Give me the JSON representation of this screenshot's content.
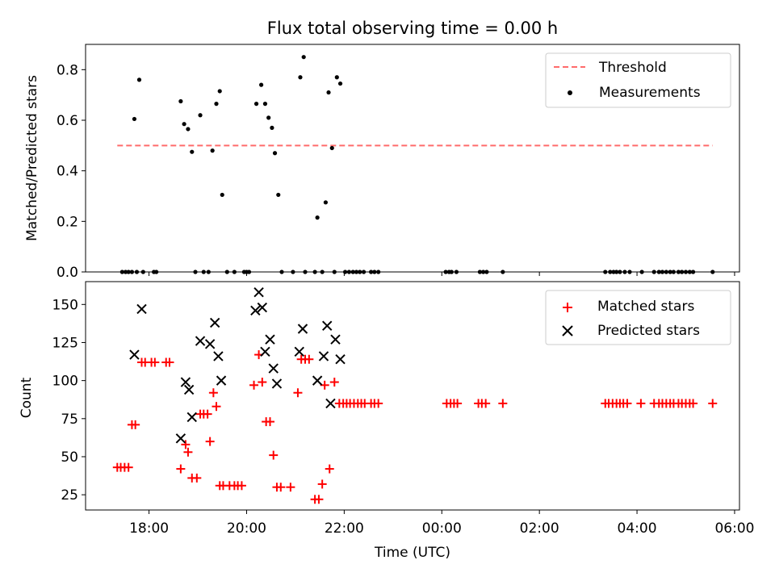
{
  "chart_data": [
    {
      "type": "scatter",
      "title": "Flux total observing time = 0.00 h",
      "xlabel": "",
      "ylabel": "Matched/Predicted stars",
      "x_unit": "hours since 00:00 UTC (day 2)",
      "xlim": [
        -7.3,
        6.1
      ],
      "ylim": [
        0,
        0.9
      ],
      "yticks": [
        0.0,
        0.2,
        0.4,
        0.6,
        0.8
      ],
      "ytick_labels": [
        "0.0",
        "0.2",
        "0.4",
        "0.6",
        "0.8"
      ],
      "legend_position": "top-right",
      "threshold": {
        "name": "Threshold",
        "value": 0.5,
        "x": [
          -6.65,
          5.55
        ],
        "color": "#ff6b6b",
        "style": "dashed"
      },
      "series": [
        {
          "name": "Measurements",
          "color": "#000000",
          "marker": "dot",
          "points": [
            [
              -6.55,
              0.0
            ],
            [
              -6.48,
              0.0
            ],
            [
              -6.42,
              0.0
            ],
            [
              -6.35,
              0.0
            ],
            [
              -6.3,
              0.605
            ],
            [
              -6.25,
              0.0
            ],
            [
              -6.2,
              0.76
            ],
            [
              -6.12,
              0.0
            ],
            [
              -5.9,
              0.0
            ],
            [
              -5.85,
              0.0
            ],
            [
              -5.35,
              0.675
            ],
            [
              -5.28,
              0.585
            ],
            [
              -5.2,
              0.565
            ],
            [
              -5.12,
              0.475
            ],
            [
              -5.05,
              0.0
            ],
            [
              -4.95,
              0.62
            ],
            [
              -4.88,
              0.0
            ],
            [
              -4.78,
              0.0
            ],
            [
              -4.7,
              0.48
            ],
            [
              -4.62,
              0.665
            ],
            [
              -4.55,
              0.715
            ],
            [
              -4.5,
              0.305
            ],
            [
              -4.4,
              0.0
            ],
            [
              -4.25,
              0.0
            ],
            [
              -4.05,
              0.0
            ],
            [
              -4.0,
              0.0
            ],
            [
              -3.95,
              0.0
            ],
            [
              -3.8,
              0.665
            ],
            [
              -3.7,
              0.74
            ],
            [
              -3.62,
              0.665
            ],
            [
              -3.55,
              0.61
            ],
            [
              -3.48,
              0.57
            ],
            [
              -3.42,
              0.47
            ],
            [
              -3.35,
              0.305
            ],
            [
              -3.28,
              0.0
            ],
            [
              -3.05,
              0.0
            ],
            [
              -2.9,
              0.77
            ],
            [
              -2.83,
              0.85
            ],
            [
              -2.8,
              0.0
            ],
            [
              -2.6,
              0.0
            ],
            [
              -2.55,
              0.215
            ],
            [
              -2.45,
              0.0
            ],
            [
              -2.38,
              0.275
            ],
            [
              -2.32,
              0.71
            ],
            [
              -2.25,
              0.49
            ],
            [
              -2.2,
              0.0
            ],
            [
              -2.15,
              0.77
            ],
            [
              -2.08,
              0.745
            ],
            [
              -1.98,
              0.0
            ],
            [
              -1.9,
              0.0
            ],
            [
              -1.82,
              0.0
            ],
            [
              -1.75,
              0.0
            ],
            [
              -1.68,
              0.0
            ],
            [
              -1.6,
              0.0
            ],
            [
              -1.45,
              0.0
            ],
            [
              -1.38,
              0.0
            ],
            [
              -1.3,
              0.0
            ],
            [
              0.08,
              0.0
            ],
            [
              0.15,
              0.0
            ],
            [
              0.2,
              0.0
            ],
            [
              0.3,
              0.0
            ],
            [
              0.78,
              0.0
            ],
            [
              0.85,
              0.0
            ],
            [
              0.92,
              0.0
            ],
            [
              1.25,
              0.0
            ],
            [
              3.35,
              0.0
            ],
            [
              3.45,
              0.0
            ],
            [
              3.52,
              0.0
            ],
            [
              3.58,
              0.0
            ],
            [
              3.65,
              0.0
            ],
            [
              3.75,
              0.0
            ],
            [
              3.85,
              0.0
            ],
            [
              4.1,
              0.0
            ],
            [
              4.35,
              0.0
            ],
            [
              4.45,
              0.0
            ],
            [
              4.52,
              0.0
            ],
            [
              4.6,
              0.0
            ],
            [
              4.68,
              0.0
            ],
            [
              4.75,
              0.0
            ],
            [
              4.85,
              0.0
            ],
            [
              4.92,
              0.0
            ],
            [
              5.0,
              0.0
            ],
            [
              5.08,
              0.0
            ],
            [
              5.15,
              0.0
            ],
            [
              5.55,
              0.0
            ]
          ]
        }
      ]
    },
    {
      "type": "scatter",
      "title": "",
      "xlabel": "Time (UTC)",
      "ylabel": "Count",
      "x_unit": "hours since 00:00 UTC (day 2)",
      "xlim": [
        -7.3,
        6.1
      ],
      "ylim": [
        15,
        165
      ],
      "yticks": [
        25,
        50,
        75,
        100,
        125,
        150
      ],
      "ytick_labels": [
        "25",
        "50",
        "75",
        "100",
        "125",
        "150"
      ],
      "xticks": [
        -6,
        -4,
        -2,
        0,
        2,
        4,
        6
      ],
      "xtick_labels": [
        "18:00",
        "20:00",
        "22:00",
        "00:00",
        "02:00",
        "04:00",
        "06:00"
      ],
      "legend_position": "top-right",
      "series": [
        {
          "name": "Matched stars",
          "color": "#ff0000",
          "marker": "plus",
          "points": [
            [
              -6.65,
              43
            ],
            [
              -6.58,
              43
            ],
            [
              -6.5,
              43
            ],
            [
              -6.42,
              43
            ],
            [
              -6.35,
              71
            ],
            [
              -6.28,
              71
            ],
            [
              -6.15,
              112
            ],
            [
              -6.08,
              112
            ],
            [
              -5.95,
              112
            ],
            [
              -5.88,
              112
            ],
            [
              -5.65,
              112
            ],
            [
              -5.58,
              112
            ],
            [
              -5.35,
              42
            ],
            [
              -5.25,
              58
            ],
            [
              -5.2,
              53
            ],
            [
              -5.12,
              36
            ],
            [
              -5.02,
              36
            ],
            [
              -4.95,
              78
            ],
            [
              -4.88,
              78
            ],
            [
              -4.8,
              78
            ],
            [
              -4.75,
              60
            ],
            [
              -4.68,
              92
            ],
            [
              -4.62,
              83
            ],
            [
              -4.55,
              31
            ],
            [
              -4.48,
              31
            ],
            [
              -4.35,
              31
            ],
            [
              -4.25,
              31
            ],
            [
              -4.18,
              31
            ],
            [
              -4.1,
              31
            ],
            [
              -3.85,
              97
            ],
            [
              -3.75,
              117
            ],
            [
              -3.68,
              99
            ],
            [
              -3.6,
              73
            ],
            [
              -3.52,
              73
            ],
            [
              -3.45,
              51
            ],
            [
              -3.38,
              30
            ],
            [
              -3.3,
              30
            ],
            [
              -3.1,
              30
            ],
            [
              -2.95,
              92
            ],
            [
              -2.88,
              114
            ],
            [
              -2.8,
              114
            ],
            [
              -2.72,
              114
            ],
            [
              -2.6,
              22
            ],
            [
              -2.52,
              22
            ],
            [
              -2.45,
              32
            ],
            [
              -2.4,
              97
            ],
            [
              -2.3,
              42
            ],
            [
              -2.2,
              99
            ],
            [
              -2.1,
              85
            ],
            [
              -2.02,
              85
            ],
            [
              -1.95,
              85
            ],
            [
              -1.88,
              85
            ],
            [
              -1.8,
              85
            ],
            [
              -1.72,
              85
            ],
            [
              -1.65,
              85
            ],
            [
              -1.58,
              85
            ],
            [
              -1.45,
              85
            ],
            [
              -1.38,
              85
            ],
            [
              -1.3,
              85
            ],
            [
              0.1,
              85
            ],
            [
              0.18,
              85
            ],
            [
              0.25,
              85
            ],
            [
              0.32,
              85
            ],
            [
              0.75,
              85
            ],
            [
              0.82,
              85
            ],
            [
              0.9,
              85
            ],
            [
              1.25,
              85
            ],
            [
              3.35,
              85
            ],
            [
              3.42,
              85
            ],
            [
              3.5,
              85
            ],
            [
              3.58,
              85
            ],
            [
              3.65,
              85
            ],
            [
              3.72,
              85
            ],
            [
              3.8,
              85
            ],
            [
              4.08,
              85
            ],
            [
              4.35,
              85
            ],
            [
              4.45,
              85
            ],
            [
              4.52,
              85
            ],
            [
              4.6,
              85
            ],
            [
              4.68,
              85
            ],
            [
              4.75,
              85
            ],
            [
              4.85,
              85
            ],
            [
              4.92,
              85
            ],
            [
              5.0,
              85
            ],
            [
              5.08,
              85
            ],
            [
              5.15,
              85
            ],
            [
              5.55,
              85
            ]
          ]
        },
        {
          "name": "Predicted stars",
          "color": "#000000",
          "marker": "cross",
          "points": [
            [
              -6.3,
              117
            ],
            [
              -6.15,
              147
            ],
            [
              -5.35,
              62
            ],
            [
              -5.25,
              99
            ],
            [
              -5.18,
              94
            ],
            [
              -5.12,
              76
            ],
            [
              -4.95,
              126
            ],
            [
              -4.75,
              124
            ],
            [
              -4.65,
              138
            ],
            [
              -4.58,
              116
            ],
            [
              -4.52,
              100
            ],
            [
              -3.82,
              146
            ],
            [
              -3.75,
              158
            ],
            [
              -3.68,
              148
            ],
            [
              -3.62,
              119
            ],
            [
              -3.52,
              127
            ],
            [
              -3.45,
              108
            ],
            [
              -3.38,
              98
            ],
            [
              -2.92,
              119
            ],
            [
              -2.85,
              134
            ],
            [
              -2.55,
              100
            ],
            [
              -2.42,
              116
            ],
            [
              -2.35,
              136
            ],
            [
              -2.28,
              85
            ],
            [
              -2.18,
              127
            ],
            [
              -2.08,
              114
            ]
          ]
        }
      ]
    }
  ]
}
